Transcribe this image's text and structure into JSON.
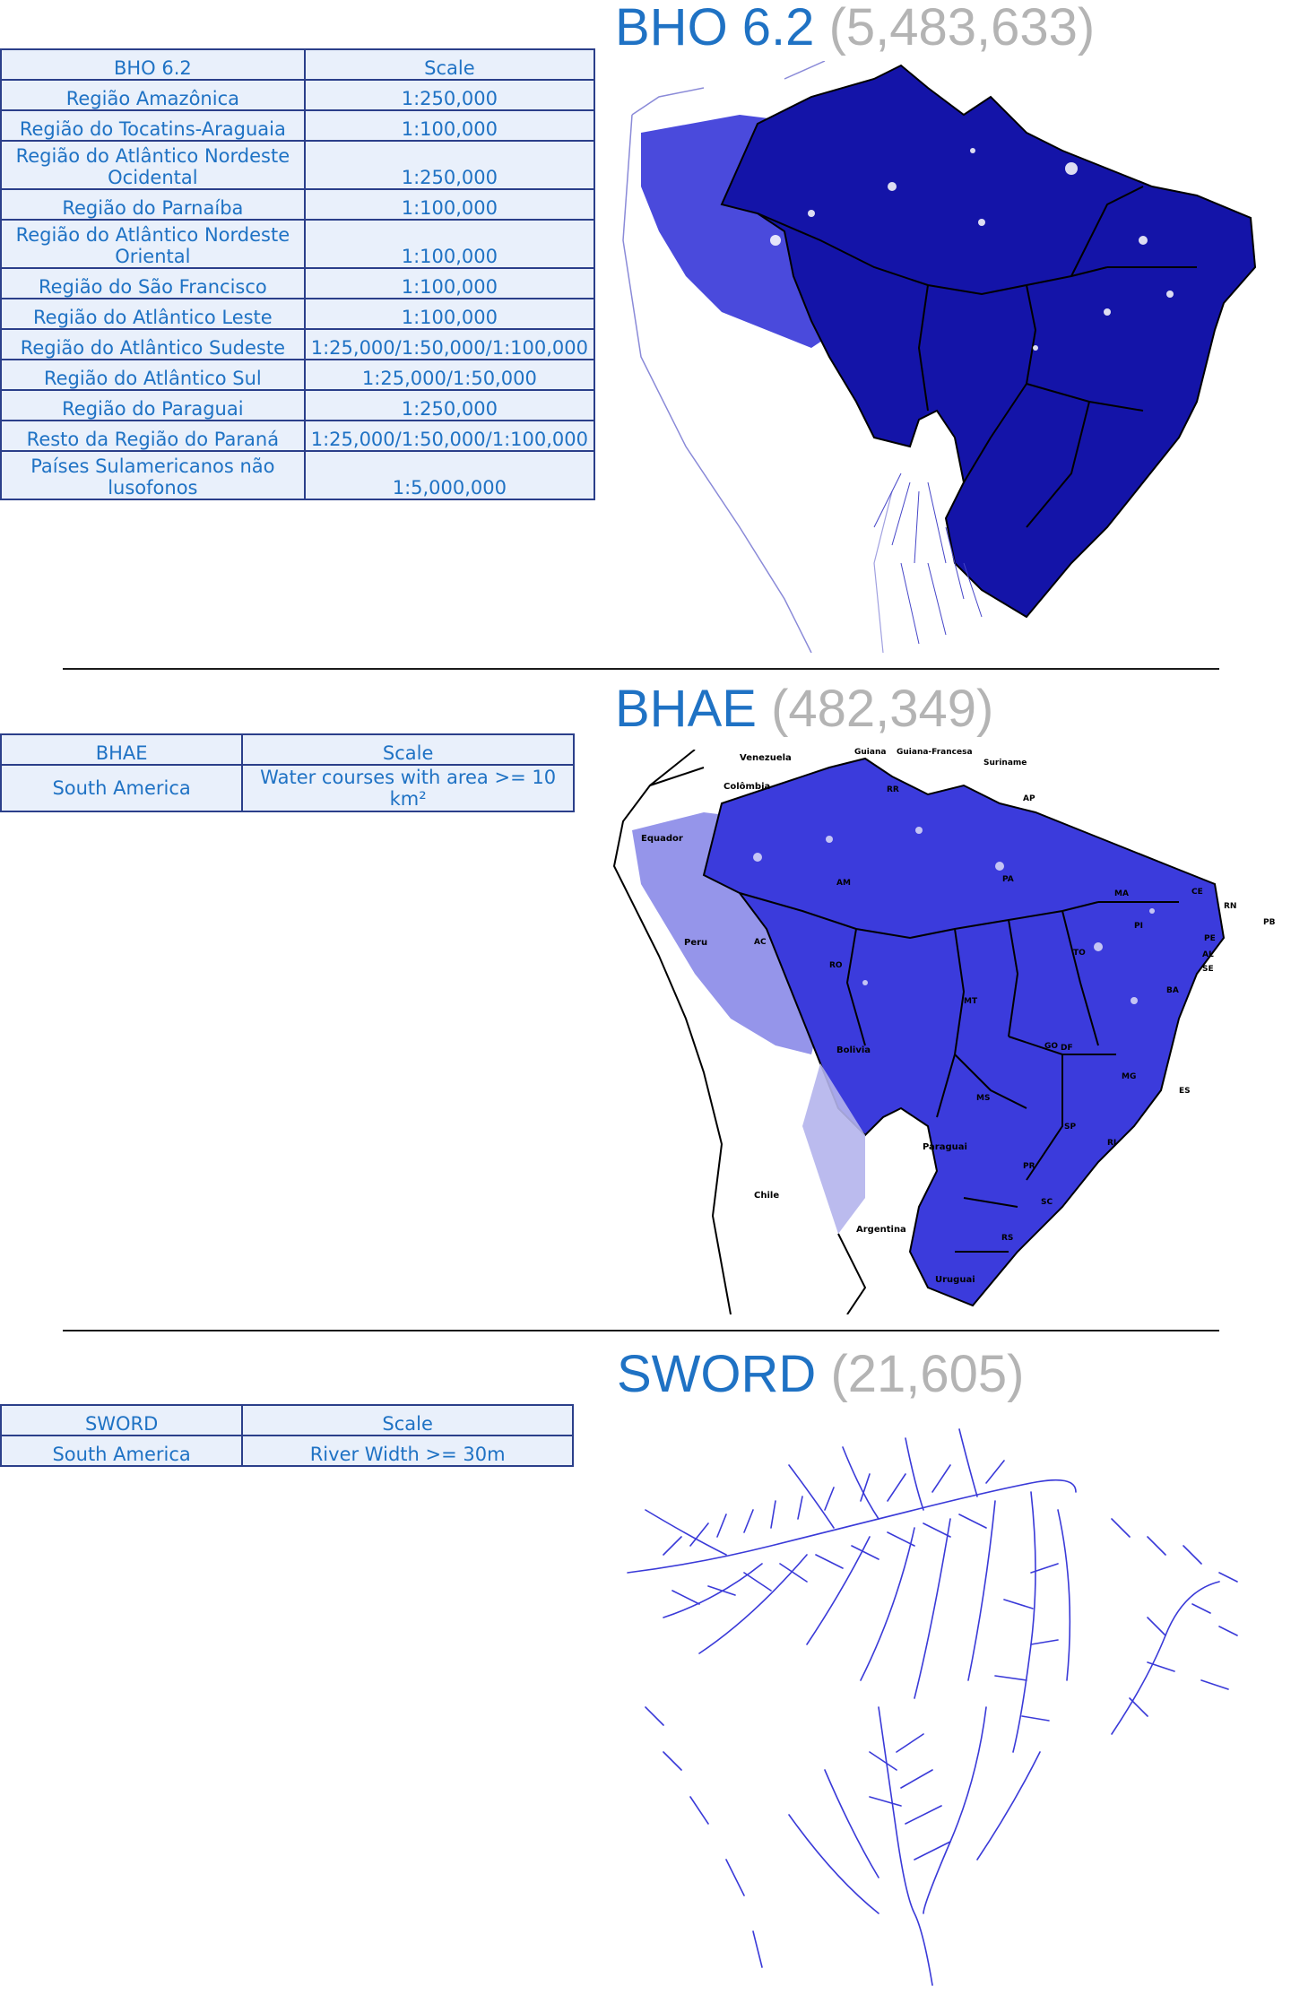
{
  "bho": {
    "title": "BHO 6.2",
    "count": "(5,483,633)",
    "headers": [
      "BHO 6.2",
      "Scale"
    ],
    "rows": [
      {
        "region": "Região Amazônica",
        "scale": "1:250,000"
      },
      {
        "region": "Região do Tocatins-Araguaia",
        "scale": "1:100,000"
      },
      {
        "region": "Região do Atlântico Nordeste Ocidental",
        "scale": "1:250,000"
      },
      {
        "region": "Região do Parnaíba",
        "scale": "1:100,000"
      },
      {
        "region": "Região do Atlântico Nordeste Oriental",
        "scale": "1:100,000"
      },
      {
        "region": "Região do São Francisco",
        "scale": "1:100,000"
      },
      {
        "region": "Região do Atlântico Leste",
        "scale": "1:100,000"
      },
      {
        "region": "Região do Atlântico Sudeste",
        "scale": "1:25,000/1:50,000/1:100,000"
      },
      {
        "region": "Região do Atlântico Sul",
        "scale": "1:25,000/1:50,000"
      },
      {
        "region": "Região do Paraguai",
        "scale": "1:250,000"
      },
      {
        "region": "Resto da Região do Paraná",
        "scale": "1:25,000/1:50,000/1:100,000"
      },
      {
        "region": "Países Sulamericanos não lusofonos",
        "scale": "1:5,000,000"
      }
    ]
  },
  "bhae": {
    "title": "BHAE",
    "count": "(482,349)",
    "headers": [
      "BHAE",
      "Scale"
    ],
    "rows": [
      {
        "region": "South America",
        "scale": "Water courses with area >= 10 km²"
      }
    ],
    "map_labels": [
      "Venezuela",
      "Guiana",
      "Guiana-Francesa",
      "Suriname",
      "Colômbia",
      "Equador",
      "Peru",
      "Bolivia",
      "Paraguai",
      "Chile",
      "Argentina",
      "Uruguai",
      "RR",
      "AP",
      "AM",
      "PA",
      "MA",
      "CE",
      "RN",
      "PB",
      "PI",
      "PE",
      "AL",
      "SE",
      "AC",
      "RO",
      "TO",
      "BA",
      "MT",
      "GO",
      "DF",
      "MG",
      "ES",
      "MS",
      "SP",
      "RJ",
      "PR",
      "SC",
      "RS"
    ]
  },
  "sword": {
    "title": "SWORD",
    "count": "(21,605)",
    "headers": [
      "SWORD",
      "Scale"
    ],
    "rows": [
      {
        "region": "South America",
        "scale": "River Width >= 30m"
      }
    ]
  },
  "colors": {
    "accent": "#1f72c4",
    "muted": "#b4b4b4",
    "table_bg": "#e9f0fb",
    "table_border": "#2b3f8a",
    "bho_fill": "#1414a8",
    "bhae_fill": "#3b3bdc",
    "river": "#3a3ad8"
  }
}
